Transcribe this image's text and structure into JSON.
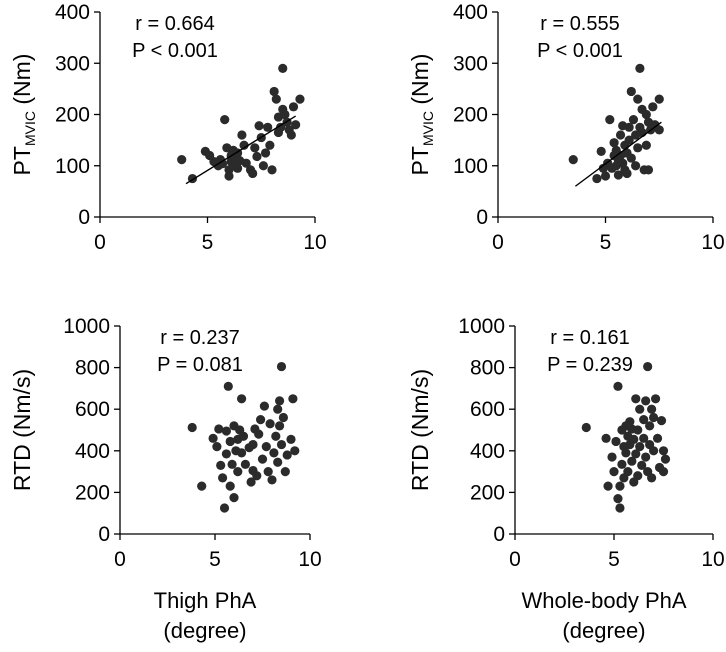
{
  "chart_data": [
    {
      "id": "p1",
      "type": "scatter",
      "ylabel_main": "PT",
      "ylabel_sub": "MVIC",
      "ylabel_tail": " (Nm)",
      "xlabel": "",
      "xlim": [
        0,
        10
      ],
      "ylim": [
        0,
        400
      ],
      "xticks": [
        "0",
        "5",
        "10"
      ],
      "yticks": [
        "0",
        "100",
        "200",
        "300",
        "400"
      ],
      "stat_r": "r = 0.664",
      "stat_p": "P < 0.001",
      "trendline": {
        "x": [
          4.0,
          9.1
        ],
        "y": [
          65,
          197
        ]
      },
      "points": [
        {
          "x": 3.8,
          "y": 112
        },
        {
          "x": 4.3,
          "y": 75
        },
        {
          "x": 4.9,
          "y": 128
        },
        {
          "x": 5.1,
          "y": 120
        },
        {
          "x": 5.3,
          "y": 108
        },
        {
          "x": 5.5,
          "y": 100
        },
        {
          "x": 5.6,
          "y": 112
        },
        {
          "x": 5.7,
          "y": 104
        },
        {
          "x": 5.8,
          "y": 190
        },
        {
          "x": 5.9,
          "y": 135
        },
        {
          "x": 6.0,
          "y": 92
        },
        {
          "x": 6.0,
          "y": 80
        },
        {
          "x": 6.1,
          "y": 120
        },
        {
          "x": 6.1,
          "y": 108
        },
        {
          "x": 6.2,
          "y": 100
        },
        {
          "x": 6.2,
          "y": 130
        },
        {
          "x": 6.3,
          "y": 115
        },
        {
          "x": 6.4,
          "y": 95
        },
        {
          "x": 6.4,
          "y": 125
        },
        {
          "x": 6.5,
          "y": 110
        },
        {
          "x": 6.6,
          "y": 160
        },
        {
          "x": 6.7,
          "y": 140
        },
        {
          "x": 6.8,
          "y": 105
        },
        {
          "x": 7.0,
          "y": 92
        },
        {
          "x": 7.1,
          "y": 85
        },
        {
          "x": 7.2,
          "y": 135
        },
        {
          "x": 7.3,
          "y": 118
        },
        {
          "x": 7.4,
          "y": 178
        },
        {
          "x": 7.5,
          "y": 155
        },
        {
          "x": 7.6,
          "y": 100
        },
        {
          "x": 7.7,
          "y": 125
        },
        {
          "x": 7.8,
          "y": 175
        },
        {
          "x": 7.9,
          "y": 140
        },
        {
          "x": 8.0,
          "y": 92
        },
        {
          "x": 8.1,
          "y": 245
        },
        {
          "x": 8.2,
          "y": 230
        },
        {
          "x": 8.3,
          "y": 165
        },
        {
          "x": 8.3,
          "y": 195
        },
        {
          "x": 8.4,
          "y": 175
        },
        {
          "x": 8.5,
          "y": 290
        },
        {
          "x": 8.5,
          "y": 210
        },
        {
          "x": 8.6,
          "y": 200
        },
        {
          "x": 8.7,
          "y": 185
        },
        {
          "x": 8.8,
          "y": 170
        },
        {
          "x": 8.9,
          "y": 160
        },
        {
          "x": 9.0,
          "y": 215
        },
        {
          "x": 9.1,
          "y": 180
        },
        {
          "x": 9.3,
          "y": 230
        }
      ]
    },
    {
      "id": "p2",
      "type": "scatter",
      "ylabel_main": "PT",
      "ylabel_sub": "MVIC",
      "ylabel_tail": " (Nm)",
      "xlabel": "",
      "xlim": [
        0,
        10
      ],
      "ylim": [
        0,
        400
      ],
      "xticks": [
        "0",
        "5",
        "10"
      ],
      "yticks": [
        "0",
        "100",
        "200",
        "300",
        "400"
      ],
      "stat_r": "r = 0.555",
      "stat_p": "P < 0.001",
      "trendline": {
        "x": [
          3.6,
          7.6
        ],
        "y": [
          60,
          185
        ]
      },
      "points": [
        {
          "x": 3.5,
          "y": 112
        },
        {
          "x": 4.6,
          "y": 75
        },
        {
          "x": 4.8,
          "y": 128
        },
        {
          "x": 4.9,
          "y": 95
        },
        {
          "x": 5.0,
          "y": 80
        },
        {
          "x": 5.1,
          "y": 105
        },
        {
          "x": 5.2,
          "y": 190
        },
        {
          "x": 5.3,
          "y": 95
        },
        {
          "x": 5.4,
          "y": 120
        },
        {
          "x": 5.4,
          "y": 145
        },
        {
          "x": 5.5,
          "y": 100
        },
        {
          "x": 5.5,
          "y": 130
        },
        {
          "x": 5.6,
          "y": 110
        },
        {
          "x": 5.6,
          "y": 82
        },
        {
          "x": 5.7,
          "y": 160
        },
        {
          "x": 5.7,
          "y": 120
        },
        {
          "x": 5.8,
          "y": 178
        },
        {
          "x": 5.8,
          "y": 105
        },
        {
          "x": 5.9,
          "y": 140
        },
        {
          "x": 5.9,
          "y": 92
        },
        {
          "x": 6.0,
          "y": 125
        },
        {
          "x": 6.0,
          "y": 85
        },
        {
          "x": 6.1,
          "y": 175
        },
        {
          "x": 6.1,
          "y": 150
        },
        {
          "x": 6.2,
          "y": 115
        },
        {
          "x": 6.2,
          "y": 245
        },
        {
          "x": 6.3,
          "y": 190
        },
        {
          "x": 6.4,
          "y": 160
        },
        {
          "x": 6.4,
          "y": 100
        },
        {
          "x": 6.5,
          "y": 230
        },
        {
          "x": 6.5,
          "y": 135
        },
        {
          "x": 6.6,
          "y": 290
        },
        {
          "x": 6.6,
          "y": 175
        },
        {
          "x": 6.7,
          "y": 210
        },
        {
          "x": 6.7,
          "y": 165
        },
        {
          "x": 6.8,
          "y": 92
        },
        {
          "x": 6.9,
          "y": 200
        },
        {
          "x": 6.9,
          "y": 140
        },
        {
          "x": 7.0,
          "y": 185
        },
        {
          "x": 7.0,
          "y": 92
        },
        {
          "x": 7.1,
          "y": 170
        },
        {
          "x": 7.2,
          "y": 215
        },
        {
          "x": 7.3,
          "y": 180
        },
        {
          "x": 7.5,
          "y": 230
        },
        {
          "x": 7.5,
          "y": 170
        }
      ]
    },
    {
      "id": "p3",
      "type": "scatter",
      "ylabel_main": "RTD (Nm/s)",
      "ylabel_sub": "",
      "ylabel_tail": "",
      "xlabel_line1": "Thigh PhA",
      "xlabel_line2": "(degree)",
      "xlim": [
        0,
        10
      ],
      "ylim": [
        0,
        1000
      ],
      "xticks": [
        "0",
        "5",
        "10"
      ],
      "yticks": [
        "0",
        "200",
        "400",
        "600",
        "800",
        "1000"
      ],
      "stat_r": "r = 0.237",
      "stat_p": "P = 0.081",
      "points": [
        {
          "x": 3.8,
          "y": 512
        },
        {
          "x": 4.3,
          "y": 230
        },
        {
          "x": 4.9,
          "y": 460
        },
        {
          "x": 5.1,
          "y": 420
        },
        {
          "x": 5.2,
          "y": 505
        },
        {
          "x": 5.3,
          "y": 330
        },
        {
          "x": 5.4,
          "y": 270
        },
        {
          "x": 5.5,
          "y": 125
        },
        {
          "x": 5.6,
          "y": 495
        },
        {
          "x": 5.6,
          "y": 385
        },
        {
          "x": 5.7,
          "y": 710
        },
        {
          "x": 5.8,
          "y": 445
        },
        {
          "x": 5.8,
          "y": 230
        },
        {
          "x": 5.9,
          "y": 335
        },
        {
          "x": 6.0,
          "y": 520
        },
        {
          "x": 6.0,
          "y": 175
        },
        {
          "x": 6.1,
          "y": 400
        },
        {
          "x": 6.2,
          "y": 455
        },
        {
          "x": 6.2,
          "y": 300
        },
        {
          "x": 6.3,
          "y": 500
        },
        {
          "x": 6.4,
          "y": 650
        },
        {
          "x": 6.4,
          "y": 390
        },
        {
          "x": 6.5,
          "y": 470
        },
        {
          "x": 6.6,
          "y": 335
        },
        {
          "x": 6.8,
          "y": 415
        },
        {
          "x": 6.9,
          "y": 250
        },
        {
          "x": 7.0,
          "y": 305
        },
        {
          "x": 7.0,
          "y": 430
        },
        {
          "x": 7.1,
          "y": 505
        },
        {
          "x": 7.2,
          "y": 280
        },
        {
          "x": 7.3,
          "y": 480
        },
        {
          "x": 7.4,
          "y": 550
        },
        {
          "x": 7.5,
          "y": 360
        },
        {
          "x": 7.6,
          "y": 615
        },
        {
          "x": 7.7,
          "y": 420
        },
        {
          "x": 7.8,
          "y": 300
        },
        {
          "x": 7.9,
          "y": 530
        },
        {
          "x": 8.0,
          "y": 260
        },
        {
          "x": 8.1,
          "y": 390
        },
        {
          "x": 8.2,
          "y": 470
        },
        {
          "x": 8.3,
          "y": 600
        },
        {
          "x": 8.3,
          "y": 345
        },
        {
          "x": 8.4,
          "y": 640
        },
        {
          "x": 8.4,
          "y": 520
        },
        {
          "x": 8.5,
          "y": 805
        },
        {
          "x": 8.5,
          "y": 430
        },
        {
          "x": 8.6,
          "y": 560
        },
        {
          "x": 8.7,
          "y": 300
        },
        {
          "x": 8.8,
          "y": 380
        },
        {
          "x": 9.0,
          "y": 455
        },
        {
          "x": 9.1,
          "y": 650
        },
        {
          "x": 9.2,
          "y": 400
        }
      ]
    },
    {
      "id": "p4",
      "type": "scatter",
      "ylabel_main": "RTD (Nm/s)",
      "ylabel_sub": "",
      "ylabel_tail": "",
      "xlabel_line1": "Whole-body PhA",
      "xlabel_line2": "(degree)",
      "xlim": [
        0,
        10
      ],
      "ylim": [
        0,
        1000
      ],
      "xticks": [
        "0",
        "5",
        "10"
      ],
      "yticks": [
        "0",
        "200",
        "400",
        "600",
        "800",
        "1000"
      ],
      "stat_r": "r = 0.161",
      "stat_p": "P = 0.239",
      "points": [
        {
          "x": 3.6,
          "y": 512
        },
        {
          "x": 4.6,
          "y": 460
        },
        {
          "x": 4.7,
          "y": 230
        },
        {
          "x": 4.9,
          "y": 370
        },
        {
          "x": 5.0,
          "y": 300
        },
        {
          "x": 5.1,
          "y": 445
        },
        {
          "x": 5.2,
          "y": 710
        },
        {
          "x": 5.2,
          "y": 170
        },
        {
          "x": 5.3,
          "y": 125
        },
        {
          "x": 5.3,
          "y": 230
        },
        {
          "x": 5.4,
          "y": 500
        },
        {
          "x": 5.4,
          "y": 335
        },
        {
          "x": 5.5,
          "y": 420
        },
        {
          "x": 5.5,
          "y": 270
        },
        {
          "x": 5.6,
          "y": 520
        },
        {
          "x": 5.6,
          "y": 390
        },
        {
          "x": 5.7,
          "y": 470
        },
        {
          "x": 5.7,
          "y": 300
        },
        {
          "x": 5.8,
          "y": 540
        },
        {
          "x": 5.8,
          "y": 430
        },
        {
          "x": 5.9,
          "y": 505
        },
        {
          "x": 5.9,
          "y": 350
        },
        {
          "x": 6.0,
          "y": 250
        },
        {
          "x": 6.0,
          "y": 455
        },
        {
          "x": 6.1,
          "y": 650
        },
        {
          "x": 6.1,
          "y": 385
        },
        {
          "x": 6.2,
          "y": 500
        },
        {
          "x": 6.2,
          "y": 280
        },
        {
          "x": 6.3,
          "y": 600
        },
        {
          "x": 6.3,
          "y": 420
        },
        {
          "x": 6.4,
          "y": 330
        },
        {
          "x": 6.5,
          "y": 550
        },
        {
          "x": 6.5,
          "y": 460
        },
        {
          "x": 6.6,
          "y": 640
        },
        {
          "x": 6.6,
          "y": 370
        },
        {
          "x": 6.7,
          "y": 805
        },
        {
          "x": 6.7,
          "y": 300
        },
        {
          "x": 6.8,
          "y": 520
        },
        {
          "x": 6.8,
          "y": 430
        },
        {
          "x": 6.9,
          "y": 600
        },
        {
          "x": 6.9,
          "y": 270
        },
        {
          "x": 7.0,
          "y": 560
        },
        {
          "x": 7.0,
          "y": 400
        },
        {
          "x": 7.1,
          "y": 650
        },
        {
          "x": 7.2,
          "y": 460
        },
        {
          "x": 7.3,
          "y": 320
        },
        {
          "x": 7.4,
          "y": 545
        },
        {
          "x": 7.5,
          "y": 400
        },
        {
          "x": 7.5,
          "y": 300
        },
        {
          "x": 7.6,
          "y": 360
        }
      ]
    }
  ]
}
